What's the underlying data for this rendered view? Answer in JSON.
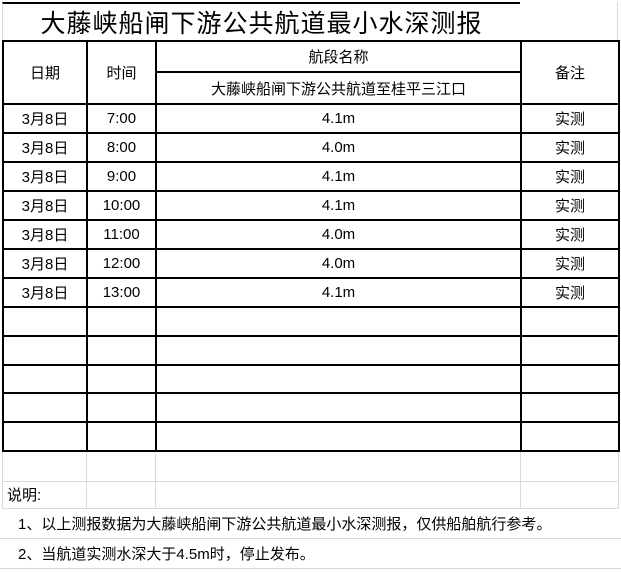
{
  "title": "大藤峡船闸下游公共航道最小水深测报",
  "table": {
    "headers": {
      "date": "日期",
      "time": "时间",
      "segment": "航段名称",
      "segment_sub": "大藤峡船闸下游公共航道至桂平三江口",
      "remark": "备注"
    },
    "rows": [
      {
        "date": "3月8日",
        "time": "7:00",
        "depth": "4.1m",
        "remark": "实测"
      },
      {
        "date": "3月8日",
        "time": "8:00",
        "depth": "4.0m",
        "remark": "实测"
      },
      {
        "date": "3月8日",
        "time": "9:00",
        "depth": "4.1m",
        "remark": "实测"
      },
      {
        "date": "3月8日",
        "time": "10:00",
        "depth": "4.1m",
        "remark": "实测"
      },
      {
        "date": "3月8日",
        "time": "11:00",
        "depth": "4.0m",
        "remark": "实测"
      },
      {
        "date": "3月8日",
        "time": "12:00",
        "depth": "4.0m",
        "remark": "实测"
      },
      {
        "date": "3月8日",
        "time": "13:00",
        "depth": "4.1m",
        "remark": "实测"
      }
    ],
    "empty_row_count": 5
  },
  "notes": {
    "label": "说明:",
    "items": [
      "1、以上测报数据为大藤峡船闸下游公共航道最小水深测报，仅供船舶航行参考。",
      "2、当航道实测水深大于4.5m时，停止发布。"
    ]
  },
  "colors": {
    "border": "#000000",
    "gridline": "#d9d9d9",
    "text": "#000000",
    "background": "#ffffff"
  }
}
